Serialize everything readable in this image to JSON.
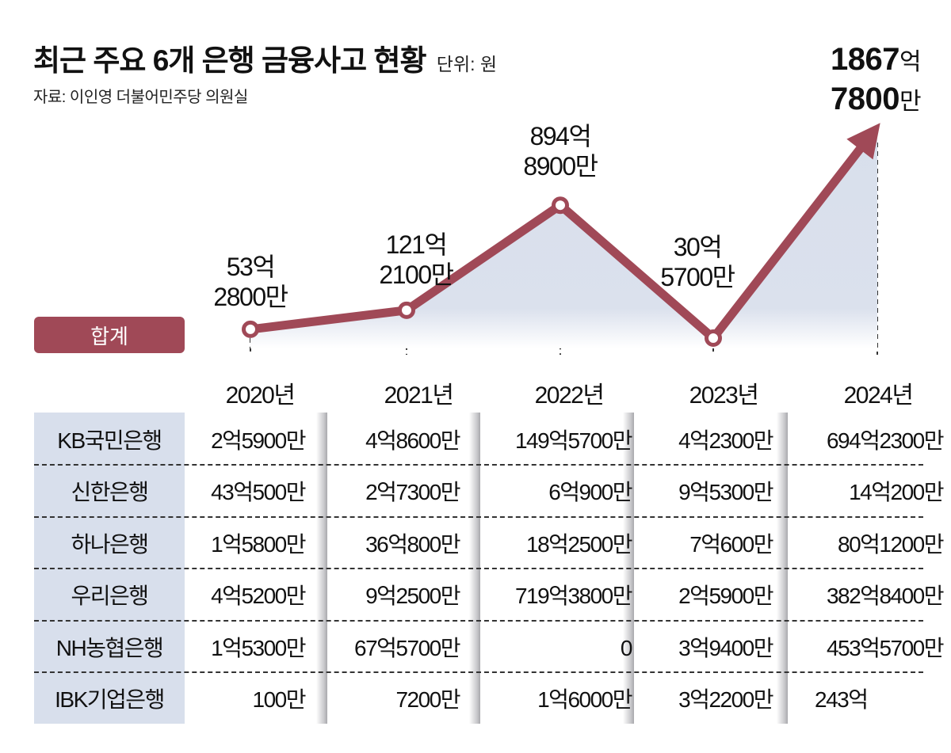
{
  "header": {
    "title": "최근 주요 6개 은행 금융사고 현황",
    "unit": "단위: 원",
    "source": "자료: 이인영 더불어민주당 의원실"
  },
  "colors": {
    "line": "#a04957",
    "area": "#d8dfec",
    "label_bg": "#d8dfec"
  },
  "total_tag": "합계",
  "chart_data": {
    "type": "line",
    "title": "최근 주요 6개 은행 금융사고 현황",
    "unit": "원",
    "x": [
      "2020년",
      "2021년",
      "2022년",
      "2023년",
      "2024년"
    ],
    "series": [
      {
        "name": "합계",
        "values": [
          5328000000,
          12121000000,
          89489000000,
          3057000000,
          186778000000
        ],
        "labels": [
          {
            "main": "53억",
            "sub": "2800만"
          },
          {
            "main": "121억",
            "sub": "2100만"
          },
          {
            "main": "894억",
            "sub": "8900만"
          },
          {
            "main": "30억",
            "sub": "5700만"
          },
          {
            "main_num": "1867",
            "main_unit": "억",
            "sub_num": "7800",
            "sub_unit": "만"
          }
        ]
      }
    ],
    "xlabel": "",
    "ylabel": "",
    "grid": false,
    "legend": "none",
    "table": {
      "columns": [
        "2020년",
        "2021년",
        "2022년",
        "2023년",
        "2024년"
      ],
      "rows": [
        {
          "bank": "KB국민은행",
          "values": [
            "2억5900만",
            "4억8600만",
            "149억5700만",
            "4억2300만",
            "694억2300만"
          ]
        },
        {
          "bank": "신한은행",
          "values": [
            "43억500만",
            "2억7300만",
            "6억900만",
            "9억5300만",
            "14억200만"
          ]
        },
        {
          "bank": "하나은행",
          "values": [
            "1억5800만",
            "36억800만",
            "18억2500만",
            "7억600만",
            "80억1200만"
          ]
        },
        {
          "bank": "우리은행",
          "values": [
            "4억5200만",
            "9억2500만",
            "719억3800만",
            "2억5900만",
            "382억8400만"
          ]
        },
        {
          "bank": "NH농협은행",
          "values": [
            "1억5300만",
            "67억5700만",
            "0",
            "3억9400만",
            "453억5700만"
          ]
        },
        {
          "bank": "IBK기업은행",
          "values": [
            "100만",
            "7200만",
            "1억6000만",
            "3억2200만",
            "243억"
          ]
        }
      ]
    }
  }
}
